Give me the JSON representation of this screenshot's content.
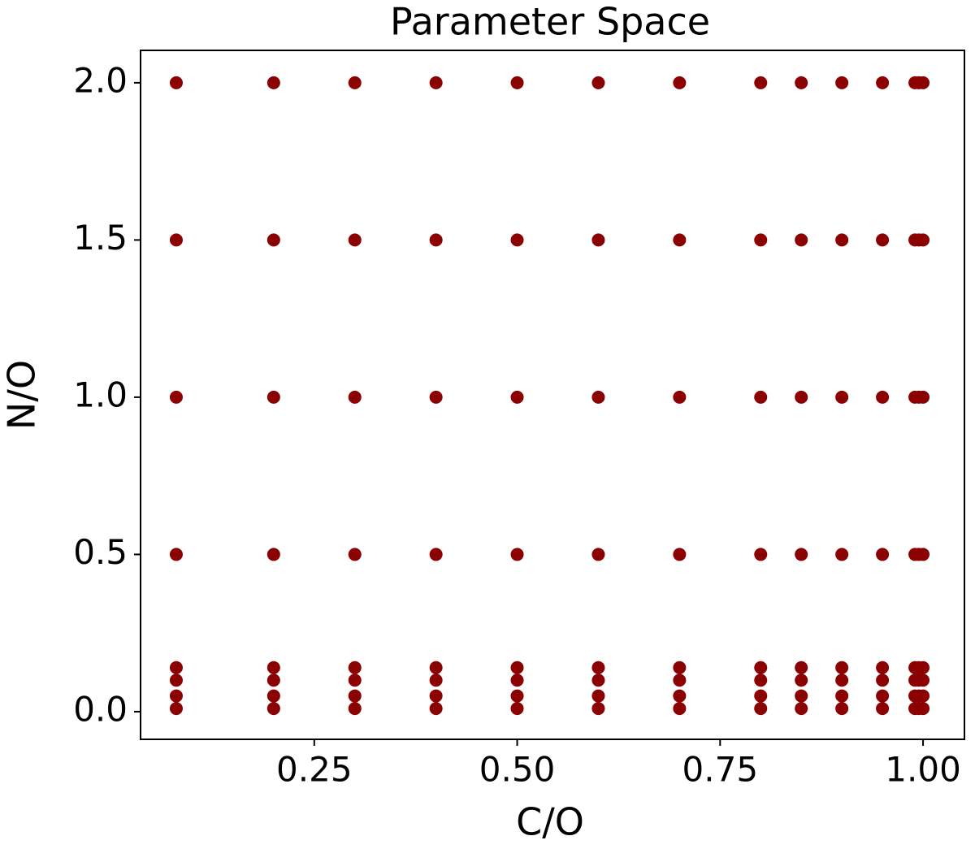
{
  "chart_data": {
    "type": "scatter",
    "title": "Parameter Space",
    "x_label": "C/O",
    "y_label": "N/O",
    "color": "#8b0000",
    "x": [
      0.08,
      0.2,
      0.3,
      0.4,
      0.5,
      0.6,
      0.7,
      0.8,
      0.85,
      0.9,
      0.95,
      0.99,
      0.995,
      1.0,
      0.08,
      0.2,
      0.3,
      0.4,
      0.5,
      0.6,
      0.7,
      0.8,
      0.85,
      0.9,
      0.95,
      0.99,
      0.995,
      1.0,
      0.08,
      0.2,
      0.3,
      0.4,
      0.5,
      0.6,
      0.7,
      0.8,
      0.85,
      0.9,
      0.95,
      0.99,
      0.995,
      1.0,
      0.08,
      0.2,
      0.3,
      0.4,
      0.5,
      0.6,
      0.7,
      0.8,
      0.85,
      0.9,
      0.95,
      0.99,
      0.995,
      1.0,
      0.08,
      0.2,
      0.3,
      0.4,
      0.5,
      0.6,
      0.7,
      0.8,
      0.85,
      0.9,
      0.95,
      0.99,
      0.995,
      1.0,
      0.08,
      0.2,
      0.3,
      0.4,
      0.5,
      0.6,
      0.7,
      0.8,
      0.85,
      0.9,
      0.95,
      0.99,
      0.995,
      1.0,
      0.08,
      0.2,
      0.3,
      0.4,
      0.5,
      0.6,
      0.7,
      0.8,
      0.85,
      0.9,
      0.95,
      0.99,
      0.995,
      1.0,
      0.08,
      0.2,
      0.3,
      0.4,
      0.5,
      0.6,
      0.7,
      0.8,
      0.85,
      0.9,
      0.95,
      0.99,
      0.995,
      1.0
    ],
    "y": [
      0.01,
      0.01,
      0.01,
      0.01,
      0.01,
      0.01,
      0.01,
      0.01,
      0.01,
      0.01,
      0.01,
      0.01,
      0.01,
      0.01,
      0.05,
      0.05,
      0.05,
      0.05,
      0.05,
      0.05,
      0.05,
      0.05,
      0.05,
      0.05,
      0.05,
      0.05,
      0.05,
      0.05,
      0.1,
      0.1,
      0.1,
      0.1,
      0.1,
      0.1,
      0.1,
      0.1,
      0.1,
      0.1,
      0.1,
      0.1,
      0.1,
      0.1,
      0.14,
      0.14,
      0.14,
      0.14,
      0.14,
      0.14,
      0.14,
      0.14,
      0.14,
      0.14,
      0.14,
      0.14,
      0.14,
      0.14,
      0.5,
      0.5,
      0.5,
      0.5,
      0.5,
      0.5,
      0.5,
      0.5,
      0.5,
      0.5,
      0.5,
      0.5,
      0.5,
      0.5,
      1.0,
      1.0,
      1.0,
      1.0,
      1.0,
      1.0,
      1.0,
      1.0,
      1.0,
      1.0,
      1.0,
      1.0,
      1.0,
      1.0,
      1.5,
      1.5,
      1.5,
      1.5,
      1.5,
      1.5,
      1.5,
      1.5,
      1.5,
      1.5,
      1.5,
      1.5,
      1.5,
      1.5,
      2.0,
      2.0,
      2.0,
      2.0,
      2.0,
      2.0,
      2.0,
      2.0,
      2.0,
      2.0,
      2.0,
      2.0,
      2.0,
      2.0
    ],
    "xlim": [
      0.036,
      1.051
    ],
    "ylim": [
      -0.088,
      2.103
    ],
    "xticks": [
      0.25,
      {
        "value": 0.5,
        "label": "0.50"
      },
      0.75,
      {
        "value": 1.0,
        "label": "1.00"
      }
    ],
    "yticks": [
      {
        "value": 0.0,
        "label": "0.0"
      },
      0.5,
      {
        "value": 1.0,
        "label": "1.0"
      },
      1.5,
      {
        "value": 2.0,
        "label": "2.0"
      }
    ],
    "grid": false
  }
}
